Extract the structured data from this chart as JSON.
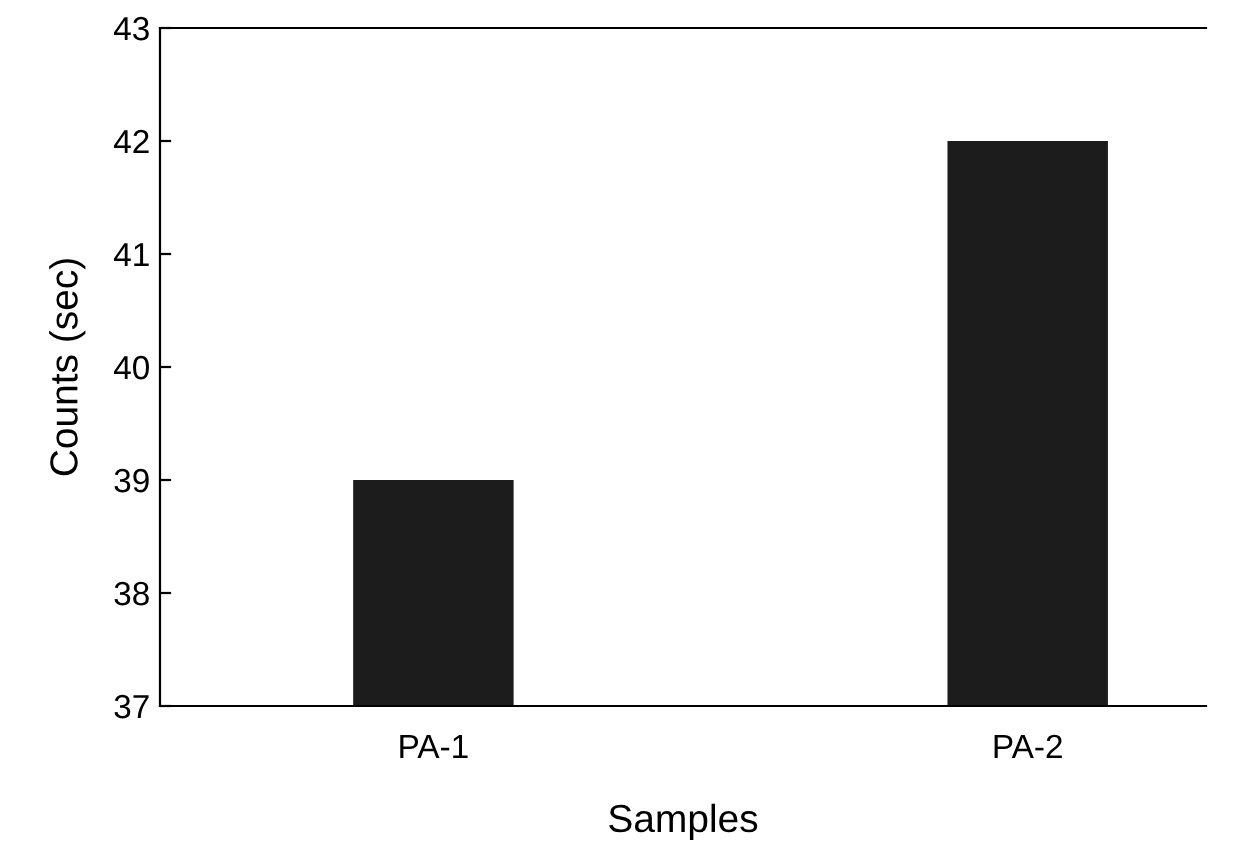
{
  "chart_data": {
    "type": "bar",
    "xlabel": "Samples",
    "ylabel": "Counts (sec)",
    "categories": [
      "PA-1",
      "PA-2"
    ],
    "values": [
      39,
      42
    ],
    "color": "#1c1c1c",
    "ylim": [
      37,
      43
    ],
    "yticks": [
      37,
      38,
      39,
      40,
      41,
      42,
      43
    ],
    "grid": false,
    "legend": false
  }
}
